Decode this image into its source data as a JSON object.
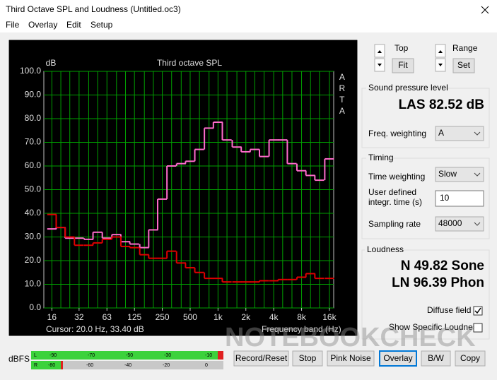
{
  "window": {
    "title": "Third Octave SPL and Loudness (Untitled.oc3)"
  },
  "menu": [
    "File",
    "Overlay",
    "Edit",
    "Setup"
  ],
  "chart_data": {
    "type": "step",
    "title": "Third octave SPL",
    "y_label": "dB",
    "side_label": "ARTA",
    "x_label": "Frequency band (Hz)",
    "cursor": "Cursor:  20.0 Hz, 33.40 dB",
    "x": [
      16,
      20,
      25,
      31.5,
      40,
      50,
      63,
      80,
      100,
      125,
      160,
      200,
      250,
      315,
      400,
      500,
      630,
      800,
      1000,
      1250,
      1600,
      2000,
      2500,
      3150,
      4000,
      5000,
      6300,
      8000,
      10000,
      12500,
      16000
    ],
    "xscale": "log",
    "xlim": [
      13.1,
      17800
    ],
    "xticks": [
      16,
      {
        "value": 31.5,
        "label": "32"
      },
      63,
      125,
      250,
      500,
      {
        "value": 1000,
        "label": "1k"
      },
      {
        "value": 2000,
        "label": "2k"
      },
      {
        "value": 4000,
        "label": "4k"
      },
      {
        "value": 8000,
        "label": "8k"
      },
      {
        "value": 16000,
        "label": "16k"
      }
    ],
    "ylim": [
      0,
      100
    ],
    "yticks": [
      {
        "value": 0,
        "label": "0.0"
      },
      {
        "value": 10,
        "label": "10.0"
      },
      {
        "value": 20,
        "label": "20.0"
      },
      {
        "value": 30,
        "label": "30.0"
      },
      {
        "value": 40,
        "label": "40.0"
      },
      {
        "value": 50,
        "label": "50.0"
      },
      {
        "value": 60,
        "label": "60.0"
      },
      {
        "value": 70,
        "label": "70.0"
      },
      {
        "value": 80,
        "label": "80.0"
      },
      {
        "value": 90,
        "label": "90.0"
      },
      {
        "value": 100,
        "label": "100.0"
      }
    ],
    "grid": true,
    "series": [
      {
        "color": "#ff6ccb",
        "values": [
          33.4,
          34,
          29.5,
          29.5,
          29,
          32,
          29.5,
          31,
          28,
          27,
          25.5,
          33,
          46,
          60,
          61,
          62,
          67,
          76,
          78.5,
          71,
          68,
          66,
          67,
          64,
          71,
          71,
          61,
          58,
          56,
          54,
          63
        ]
      },
      {
        "color": "#e00000",
        "values": [
          39.5,
          34,
          30,
          26.5,
          26.5,
          27.5,
          29,
          30,
          26,
          25.5,
          22.5,
          21,
          21,
          24,
          19,
          17,
          15,
          12.5,
          12.5,
          11,
          11,
          11,
          11,
          11.5,
          11.5,
          12,
          12,
          13,
          14.5,
          12.5,
          12.5
        ]
      }
    ]
  },
  "controls": {
    "top": "Top",
    "fit": "Fit",
    "range": "Range",
    "set": "Set"
  },
  "spl": {
    "group": "Sound pressure level",
    "reading": "LAS 82.52 dB",
    "weighting_label": "Freq. weighting",
    "weighting": "A"
  },
  "timing": {
    "group": "Timing",
    "time_weighting_label": "Time weighting",
    "time_weighting": "Slow",
    "user_label_1": "User defined",
    "user_label_2": "integr. time (s)",
    "integr_time": "10",
    "sampling_label": "Sampling rate",
    "sampling_rate": "48000"
  },
  "loudness": {
    "group": "Loudness",
    "n": "N 49.82 Sone",
    "ln": "LN 96.39 Phon",
    "diffuse": "Diffuse field",
    "specific": "Show Specific Loudness"
  },
  "meter": {
    "label": "dBFS",
    "l_labels": [
      "L",
      "-90",
      "-70",
      "-50",
      "-30",
      "-10"
    ],
    "r_labels": [
      "R",
      "-80",
      "-60",
      "-40",
      "-20",
      "0"
    ]
  },
  "buttons": [
    "Record/Reset",
    "Stop",
    "Pink Noise",
    "Overlay",
    "B/W",
    "Copy"
  ],
  "watermark": "NOTEBOOKCHECK"
}
